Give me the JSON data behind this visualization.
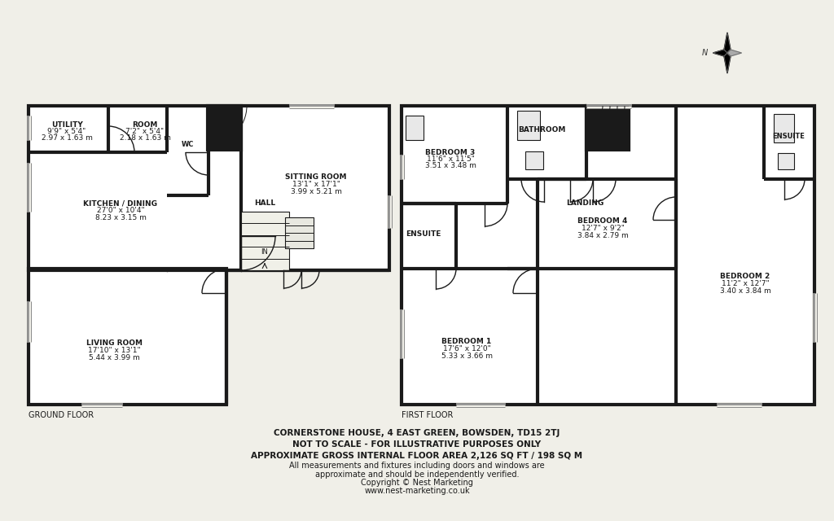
{
  "title_lines": [
    "CORNERSTONE HOUSE, 4 EAST GREEN, BOWSDEN, TD15 2TJ",
    "NOT TO SCALE - FOR ILLUSTRATIVE PURPOSES ONLY",
    "APPROXIMATE GROSS INTERNAL FLOOR AREA 2,126 SQ FT / 198 SQ M",
    "All measurements and fixtures including doors and windows are",
    "approximate and should be independently verified.",
    "Copyright © Nest Marketing",
    "www.nest-marketing.co.uk"
  ],
  "bg": "#f0efe8",
  "wc": "#1a1a1a",
  "rc": "#ffffff",
  "tc": "#1a1a1a"
}
